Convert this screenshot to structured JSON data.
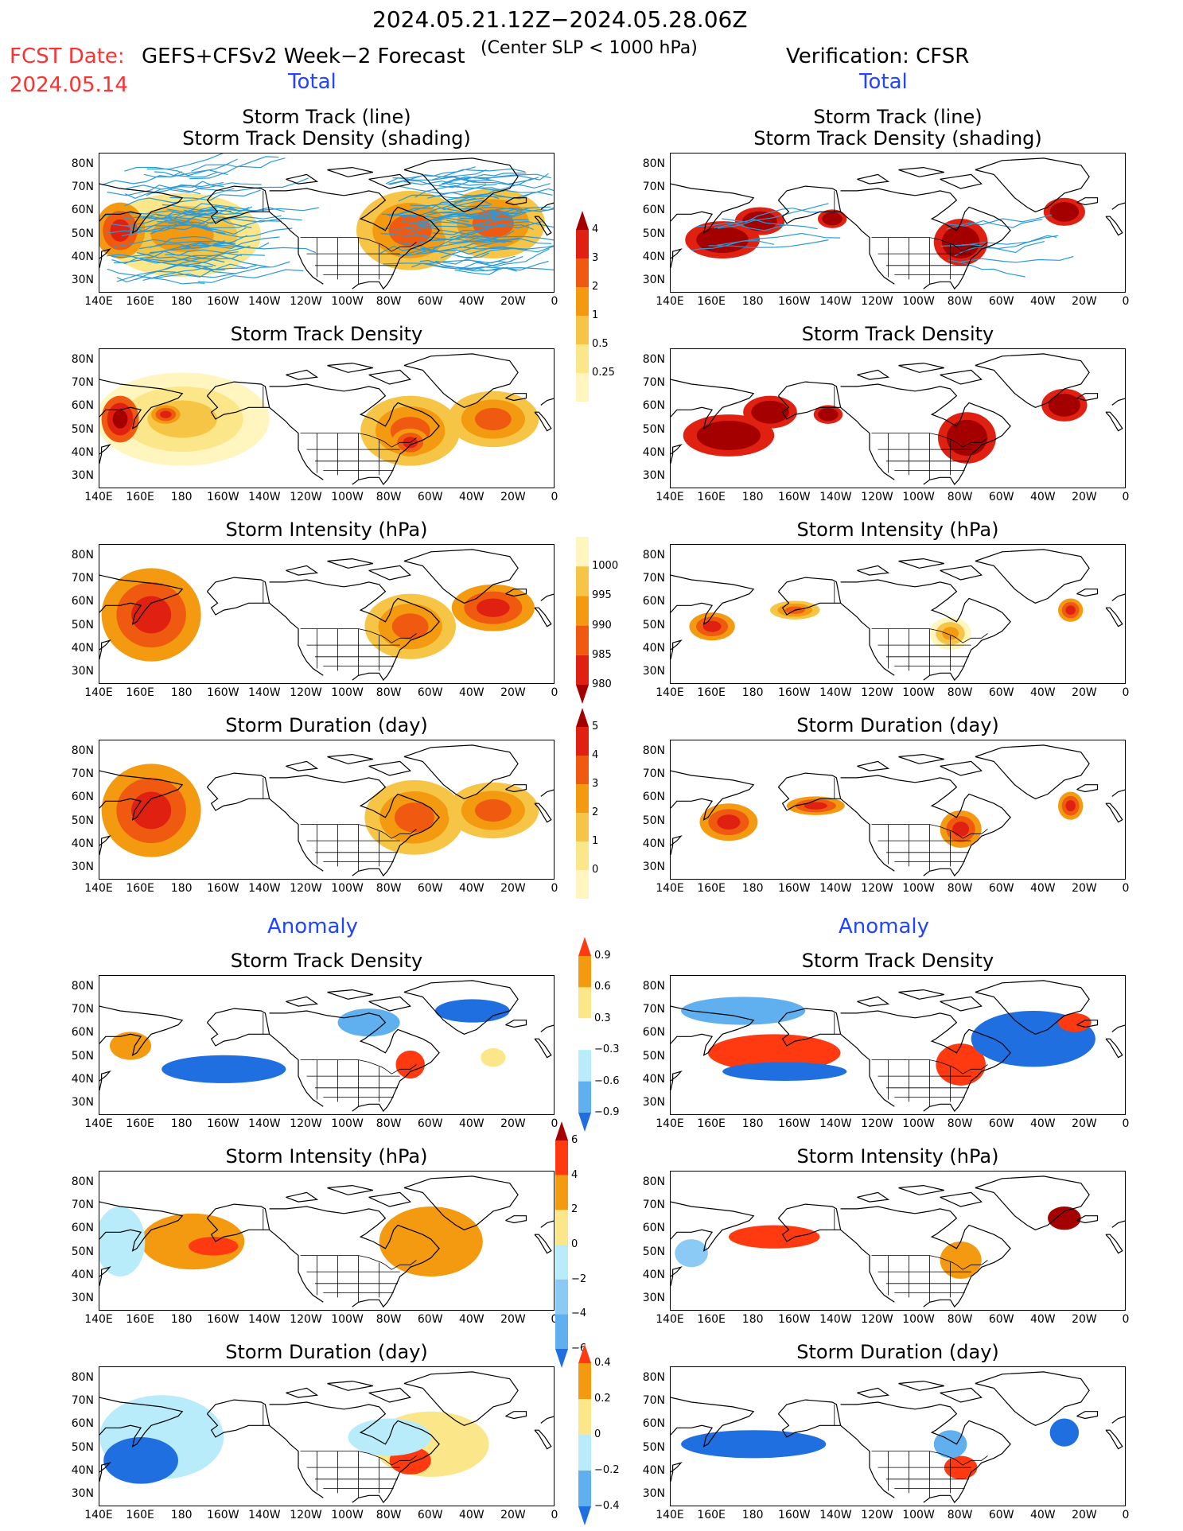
{
  "header": {
    "date_range": "2024.05.21.12Z−2024.05.28.06Z",
    "fcst_label": "FCST Date:",
    "fcst_date": "2024.05.14",
    "model": "GEFS+CFSv2 Week−2 Forecast",
    "criterion": "(Center SLP < 1000 hPa)",
    "verification": "Verification: CFSR"
  },
  "sections": {
    "total": "Total",
    "anomaly": "Anomaly"
  },
  "panel_titles": {
    "track_line": "Storm Track (line)",
    "track_shading": "Storm Track Density (shading)",
    "density": "Storm Track Density",
    "intensity": "Storm Intensity (hPa)",
    "duration": "Storm Duration (day)"
  },
  "lat_labels": [
    "80N",
    "70N",
    "60N",
    "50N",
    "40N",
    "30N"
  ],
  "lon_labels": [
    "140E",
    "160E",
    "180",
    "160W",
    "140W",
    "120W",
    "100W",
    "80W",
    "60W",
    "40W",
    "20W",
    "0"
  ],
  "colorbars": {
    "total_density": {
      "labels": [
        "4",
        "3",
        "2",
        "1",
        "0.5",
        "0.25"
      ],
      "colors": [
        "#a50000",
        "#e02010",
        "#f05a10",
        "#f39a10",
        "#f7c546",
        "#fbe68a",
        "#fff6bf"
      ]
    },
    "total_intensity": {
      "labels": [
        "1000",
        "995",
        "990",
        "985",
        "980"
      ],
      "colors": [
        "#fff6bf",
        "#f7c546",
        "#f39a10",
        "#f05a10",
        "#e02010",
        "#a50000"
      ]
    },
    "total_duration": {
      "labels": [
        "5",
        "4",
        "3",
        "2",
        "1",
        "0"
      ],
      "colors": [
        "#a50000",
        "#e02010",
        "#f05a10",
        "#f39a10",
        "#f7c546",
        "#fbe68a",
        "#fff6bf"
      ]
    },
    "anom_density": {
      "labels": [
        "0.9",
        "0.6",
        "0.3",
        "−0.3",
        "−0.6",
        "−0.9"
      ],
      "colors": [
        "#ff3a10",
        "#f39a10",
        "#fbe68a",
        "#ffffff",
        "#b8ecfa",
        "#60b0f0",
        "#1f6fe0"
      ]
    },
    "anom_intensity": {
      "labels": [
        "6",
        "4",
        "2",
        "0",
        "−2",
        "−4",
        "−6"
      ],
      "colors": [
        "#a50000",
        "#ff3a10",
        "#f39a10",
        "#fbe68a",
        "#b8ecfa",
        "#8acaf5",
        "#60b0f0",
        "#1f6fe0"
      ]
    },
    "anom_duration": {
      "labels": [
        "0.4",
        "0.2",
        "0",
        "−0.2",
        "−0.4"
      ],
      "colors": [
        "#ff3a10",
        "#f39a10",
        "#fbe68a",
        "#b8ecfa",
        "#60b0f0",
        "#1f6fe0"
      ]
    }
  }
}
